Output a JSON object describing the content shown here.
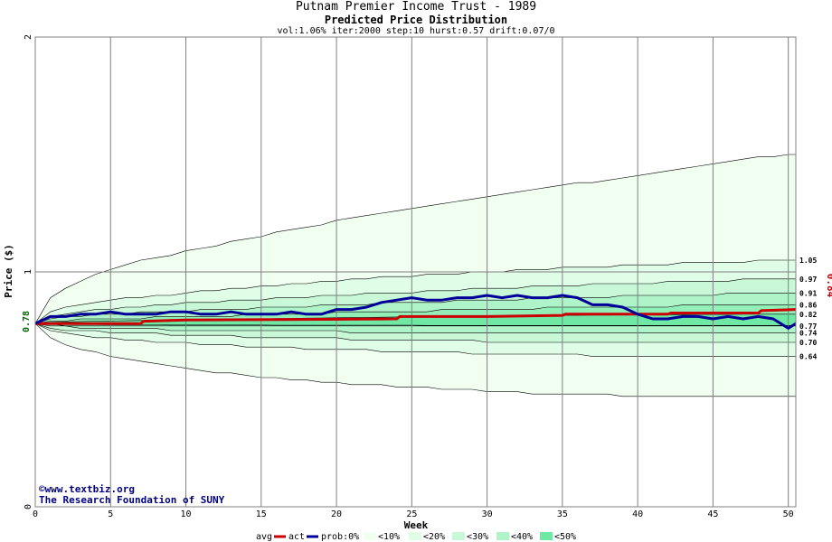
{
  "chart_data": {
    "type": "area",
    "title": "Putnam Premier Income Trust - 1989",
    "subtitle": "Predicted Price Distribution",
    "params": "vol:1.06% iter:2000 step:10 hurst:0.57 drift:0.07/0",
    "xlabel": "Week",
    "ylabel": "Price ($)",
    "xlim": [
      0,
      50.5
    ],
    "ylim": [
      0,
      2
    ],
    "x_ticks": [
      0,
      5,
      10,
      15,
      20,
      25,
      30,
      35,
      40,
      45,
      50
    ],
    "y_ticks": [
      0,
      1,
      2
    ],
    "grid": true,
    "start_price_label": "0.78",
    "current_price_label": "0.84",
    "band_end_labels": [
      "1.05",
      "0.97",
      "0.91",
      "0.86",
      "0.82",
      "0.77",
      "0.74",
      "0.70",
      "0.64"
    ],
    "credit": [
      "©www.textbiz.org",
      "The Research Foundation of SUNY"
    ],
    "legend": {
      "avg": "avg",
      "act": "act",
      "prob": "prob:0%",
      "b10": "<10%",
      "b20": "<20%",
      "b30": "<30%",
      "b40": "<40%",
      "b50": "<50%"
    },
    "colors": {
      "band_0": "#f0fff0",
      "band_10": "#e0fde8",
      "band_20": "#c8f8d8",
      "band_30": "#aff3c8",
      "band_40": "#92efb8",
      "band_50": "#6fe8a4",
      "avg_line": "#cc0000",
      "act_line": "#000099",
      "start_label": "#006400",
      "current_label": "#cc0000",
      "credit": "#000080"
    },
    "x": [
      0,
      1,
      2,
      3,
      4,
      5,
      6,
      7,
      8,
      9,
      10,
      11,
      12,
      13,
      14,
      15,
      16,
      17,
      18,
      19,
      20,
      21,
      22,
      23,
      24,
      25,
      26,
      27,
      28,
      29,
      30,
      31,
      32,
      33,
      34,
      35,
      36,
      37,
      38,
      39,
      40,
      41,
      42,
      43,
      44,
      45,
      46,
      47,
      48,
      49,
      50,
      50.5
    ],
    "bands": [
      {
        "name": "0%",
        "upper": [
          0.78,
          0.89,
          0.93,
          0.96,
          0.99,
          1.01,
          1.03,
          1.05,
          1.06,
          1.07,
          1.09,
          1.1,
          1.11,
          1.13,
          1.14,
          1.15,
          1.17,
          1.18,
          1.19,
          1.2,
          1.22,
          1.23,
          1.24,
          1.25,
          1.26,
          1.27,
          1.28,
          1.29,
          1.3,
          1.31,
          1.32,
          1.33,
          1.34,
          1.35,
          1.36,
          1.37,
          1.38,
          1.38,
          1.39,
          1.4,
          1.41,
          1.42,
          1.43,
          1.44,
          1.45,
          1.46,
          1.47,
          1.48,
          1.49,
          1.49,
          1.5,
          1.5
        ],
        "lower": [
          0.78,
          0.72,
          0.69,
          0.67,
          0.66,
          0.64,
          0.63,
          0.62,
          0.61,
          0.6,
          0.59,
          0.58,
          0.57,
          0.57,
          0.56,
          0.55,
          0.55,
          0.54,
          0.54,
          0.53,
          0.53,
          0.52,
          0.52,
          0.52,
          0.51,
          0.51,
          0.51,
          0.5,
          0.5,
          0.5,
          0.49,
          0.49,
          0.49,
          0.48,
          0.48,
          0.48,
          0.48,
          0.48,
          0.48,
          0.47,
          0.47,
          0.47,
          0.47,
          0.47,
          0.47,
          0.47,
          0.47,
          0.47,
          0.47,
          0.47,
          0.47,
          0.47
        ]
      },
      {
        "name": "10%",
        "upper": [
          0.78,
          0.83,
          0.85,
          0.86,
          0.87,
          0.88,
          0.89,
          0.89,
          0.9,
          0.9,
          0.91,
          0.92,
          0.92,
          0.93,
          0.93,
          0.94,
          0.94,
          0.95,
          0.95,
          0.96,
          0.96,
          0.97,
          0.97,
          0.98,
          0.98,
          0.98,
          0.99,
          0.99,
          0.99,
          1.0,
          1.0,
          1.0,
          1.01,
          1.01,
          1.01,
          1.02,
          1.02,
          1.02,
          1.02,
          1.03,
          1.03,
          1.03,
          1.03,
          1.04,
          1.04,
          1.04,
          1.04,
          1.04,
          1.05,
          1.05,
          1.05,
          1.05
        ],
        "lower": [
          0.78,
          0.75,
          0.74,
          0.73,
          0.72,
          0.72,
          0.71,
          0.71,
          0.7,
          0.7,
          0.7,
          0.69,
          0.69,
          0.69,
          0.68,
          0.68,
          0.68,
          0.68,
          0.67,
          0.67,
          0.67,
          0.67,
          0.67,
          0.66,
          0.66,
          0.66,
          0.66,
          0.66,
          0.66,
          0.65,
          0.65,
          0.65,
          0.65,
          0.65,
          0.65,
          0.65,
          0.65,
          0.64,
          0.64,
          0.64,
          0.64,
          0.64,
          0.64,
          0.64,
          0.64,
          0.64,
          0.64,
          0.64,
          0.64,
          0.64,
          0.64,
          0.64
        ]
      },
      {
        "name": "20%",
        "upper": [
          0.78,
          0.81,
          0.82,
          0.83,
          0.84,
          0.84,
          0.85,
          0.85,
          0.86,
          0.86,
          0.87,
          0.87,
          0.87,
          0.88,
          0.88,
          0.88,
          0.89,
          0.89,
          0.89,
          0.9,
          0.9,
          0.9,
          0.91,
          0.91,
          0.91,
          0.91,
          0.92,
          0.92,
          0.92,
          0.93,
          0.93,
          0.93,
          0.93,
          0.94,
          0.94,
          0.94,
          0.94,
          0.95,
          0.95,
          0.95,
          0.95,
          0.95,
          0.96,
          0.96,
          0.96,
          0.96,
          0.96,
          0.97,
          0.97,
          0.97,
          0.97,
          0.97
        ],
        "lower": [
          0.78,
          0.76,
          0.75,
          0.75,
          0.75,
          0.74,
          0.74,
          0.74,
          0.74,
          0.73,
          0.73,
          0.73,
          0.73,
          0.73,
          0.72,
          0.72,
          0.72,
          0.72,
          0.72,
          0.72,
          0.72,
          0.71,
          0.71,
          0.71,
          0.71,
          0.71,
          0.71,
          0.71,
          0.71,
          0.71,
          0.7,
          0.7,
          0.7,
          0.7,
          0.7,
          0.7,
          0.7,
          0.7,
          0.7,
          0.7,
          0.7,
          0.7,
          0.7,
          0.7,
          0.7,
          0.7,
          0.7,
          0.7,
          0.7,
          0.7,
          0.7,
          0.7
        ]
      },
      {
        "name": "30%",
        "upper": [
          0.78,
          0.8,
          0.81,
          0.81,
          0.82,
          0.82,
          0.82,
          0.83,
          0.83,
          0.83,
          0.83,
          0.84,
          0.84,
          0.84,
          0.84,
          0.85,
          0.85,
          0.85,
          0.85,
          0.86,
          0.86,
          0.86,
          0.86,
          0.87,
          0.87,
          0.87,
          0.87,
          0.87,
          0.88,
          0.88,
          0.88,
          0.88,
          0.88,
          0.89,
          0.89,
          0.89,
          0.89,
          0.89,
          0.89,
          0.9,
          0.9,
          0.9,
          0.9,
          0.9,
          0.9,
          0.9,
          0.91,
          0.91,
          0.91,
          0.91,
          0.91,
          0.91
        ],
        "lower": [
          0.78,
          0.77,
          0.77,
          0.76,
          0.76,
          0.76,
          0.76,
          0.76,
          0.76,
          0.75,
          0.75,
          0.75,
          0.75,
          0.75,
          0.75,
          0.75,
          0.75,
          0.75,
          0.75,
          0.75,
          0.75,
          0.74,
          0.74,
          0.74,
          0.74,
          0.74,
          0.74,
          0.74,
          0.74,
          0.74,
          0.74,
          0.74,
          0.74,
          0.74,
          0.74,
          0.74,
          0.74,
          0.74,
          0.74,
          0.74,
          0.74,
          0.74,
          0.74,
          0.74,
          0.74,
          0.74,
          0.74,
          0.74,
          0.74,
          0.74,
          0.74,
          0.74
        ]
      },
      {
        "name": "40%",
        "upper": [
          0.78,
          0.79,
          0.79,
          0.8,
          0.8,
          0.8,
          0.8,
          0.8,
          0.81,
          0.81,
          0.81,
          0.81,
          0.81,
          0.81,
          0.82,
          0.82,
          0.82,
          0.82,
          0.82,
          0.82,
          0.83,
          0.83,
          0.83,
          0.83,
          0.83,
          0.83,
          0.83,
          0.84,
          0.84,
          0.84,
          0.84,
          0.84,
          0.84,
          0.84,
          0.85,
          0.85,
          0.85,
          0.85,
          0.85,
          0.85,
          0.85,
          0.85,
          0.85,
          0.86,
          0.86,
          0.86,
          0.86,
          0.86,
          0.86,
          0.86,
          0.86,
          0.86
        ],
        "lower": [
          0.78,
          0.78,
          0.77,
          0.77,
          0.77,
          0.77,
          0.77,
          0.77,
          0.77,
          0.77,
          0.77,
          0.77,
          0.77,
          0.77,
          0.77,
          0.77,
          0.77,
          0.77,
          0.77,
          0.77,
          0.77,
          0.77,
          0.77,
          0.77,
          0.77,
          0.77,
          0.77,
          0.77,
          0.77,
          0.77,
          0.77,
          0.77,
          0.77,
          0.77,
          0.77,
          0.77,
          0.77,
          0.77,
          0.77,
          0.77,
          0.77,
          0.77,
          0.77,
          0.77,
          0.77,
          0.77,
          0.77,
          0.77,
          0.77,
          0.77,
          0.77,
          0.77
        ]
      },
      {
        "name": "50%",
        "upper": [
          0.78,
          0.785,
          0.787,
          0.789,
          0.79,
          0.791,
          0.792,
          0.793,
          0.794,
          0.795,
          0.796,
          0.797,
          0.798,
          0.799,
          0.8,
          0.8,
          0.801,
          0.802,
          0.803,
          0.804,
          0.805,
          0.806,
          0.806,
          0.807,
          0.808,
          0.809,
          0.81,
          0.81,
          0.811,
          0.812,
          0.812,
          0.813,
          0.813,
          0.814,
          0.814,
          0.815,
          0.815,
          0.816,
          0.816,
          0.817,
          0.817,
          0.818,
          0.818,
          0.818,
          0.819,
          0.819,
          0.819,
          0.82,
          0.82,
          0.82,
          0.82,
          0.82
        ],
        "lower": [
          0.78,
          0.778,
          0.777,
          0.776,
          0.776,
          0.775,
          0.775,
          0.775,
          0.775,
          0.774,
          0.774,
          0.774,
          0.774,
          0.774,
          0.774,
          0.774,
          0.773,
          0.773,
          0.773,
          0.773,
          0.773,
          0.773,
          0.773,
          0.773,
          0.773,
          0.773,
          0.772,
          0.772,
          0.772,
          0.772,
          0.772,
          0.772,
          0.772,
          0.772,
          0.772,
          0.772,
          0.772,
          0.772,
          0.772,
          0.772,
          0.772,
          0.772,
          0.772,
          0.772,
          0.772,
          0.772,
          0.772,
          0.772,
          0.772,
          0.772,
          0.772,
          0.772
        ]
      }
    ],
    "series": [
      {
        "name": "avg",
        "x": [
          0,
          7,
          7.2,
          10,
          24,
          24.2,
          30,
          35,
          35.2,
          40,
          42,
          42.2,
          48,
          48.2,
          50.5
        ],
        "values": [
          0.78,
          0.78,
          0.79,
          0.795,
          0.8,
          0.81,
          0.81,
          0.815,
          0.82,
          0.82,
          0.82,
          0.825,
          0.825,
          0.835,
          0.84
        ]
      },
      {
        "name": "act",
        "x": [
          0,
          1,
          2,
          3,
          4,
          5,
          6,
          7,
          8,
          9,
          10,
          11,
          12,
          13,
          14,
          15,
          16,
          17,
          18,
          19,
          20,
          21,
          22,
          23,
          24,
          25,
          26,
          27,
          28,
          29,
          30,
          31,
          32,
          33,
          34,
          35,
          36,
          37,
          38,
          39,
          40,
          41,
          42,
          43,
          44,
          45,
          46,
          47,
          48,
          49,
          50,
          50.5
        ],
        "values": [
          0.78,
          0.81,
          0.81,
          0.82,
          0.82,
          0.83,
          0.82,
          0.82,
          0.82,
          0.83,
          0.83,
          0.82,
          0.82,
          0.83,
          0.82,
          0.82,
          0.82,
          0.83,
          0.82,
          0.82,
          0.84,
          0.84,
          0.85,
          0.87,
          0.88,
          0.89,
          0.88,
          0.88,
          0.89,
          0.89,
          0.9,
          0.89,
          0.9,
          0.89,
          0.89,
          0.9,
          0.89,
          0.86,
          0.86,
          0.85,
          0.82,
          0.8,
          0.8,
          0.81,
          0.81,
          0.8,
          0.81,
          0.8,
          0.81,
          0.8,
          0.76,
          0.78
        ]
      }
    ]
  }
}
